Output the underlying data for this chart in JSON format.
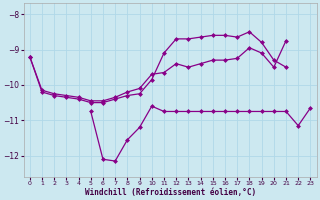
{
  "xlabel": "Windchill (Refroidissement éolien,°C)",
  "background_color": "#cce8f0",
  "grid_color": "#b0d8e8",
  "line_color": "#880088",
  "hours": [
    0,
    1,
    2,
    3,
    4,
    5,
    6,
    7,
    8,
    9,
    10,
    11,
    12,
    13,
    14,
    15,
    16,
    17,
    18,
    19,
    20,
    21,
    22,
    23
  ],
  "series1": [
    -9.2,
    -10.2,
    -10.3,
    -10.35,
    -10.4,
    -10.5,
    -10.5,
    -10.4,
    -10.3,
    -10.25,
    -9.85,
    -9.1,
    -8.7,
    -8.7,
    -8.65,
    -8.6,
    -8.6,
    -8.65,
    -8.5,
    -8.8,
    -9.3,
    -9.5,
    null,
    null
  ],
  "series2": [
    -9.2,
    -10.15,
    -10.25,
    -10.3,
    -10.35,
    -10.45,
    -10.45,
    -10.35,
    -10.2,
    -10.1,
    -9.7,
    -9.65,
    -9.4,
    -9.5,
    -9.4,
    -9.3,
    -9.3,
    -9.25,
    -8.95,
    -9.1,
    -9.5,
    -8.75,
    null,
    null
  ],
  "series3": [
    null,
    null,
    null,
    null,
    null,
    -10.75,
    -12.1,
    -12.15,
    -11.55,
    -11.2,
    -10.6,
    -10.75,
    -10.75,
    -10.75,
    -10.75,
    -10.75,
    -10.75,
    -10.75,
    -10.75,
    -10.75,
    -10.75,
    -10.75,
    -11.15,
    -10.65
  ],
  "ylim": [
    -12.6,
    -7.7
  ],
  "yticks": [
    -12,
    -11,
    -10,
    -9,
    -8
  ],
  "xlim": [
    -0.5,
    23.5
  ],
  "xticks": [
    0,
    1,
    2,
    3,
    4,
    5,
    6,
    7,
    8,
    9,
    10,
    11,
    12,
    13,
    14,
    15,
    16,
    17,
    18,
    19,
    20,
    21,
    22,
    23
  ]
}
